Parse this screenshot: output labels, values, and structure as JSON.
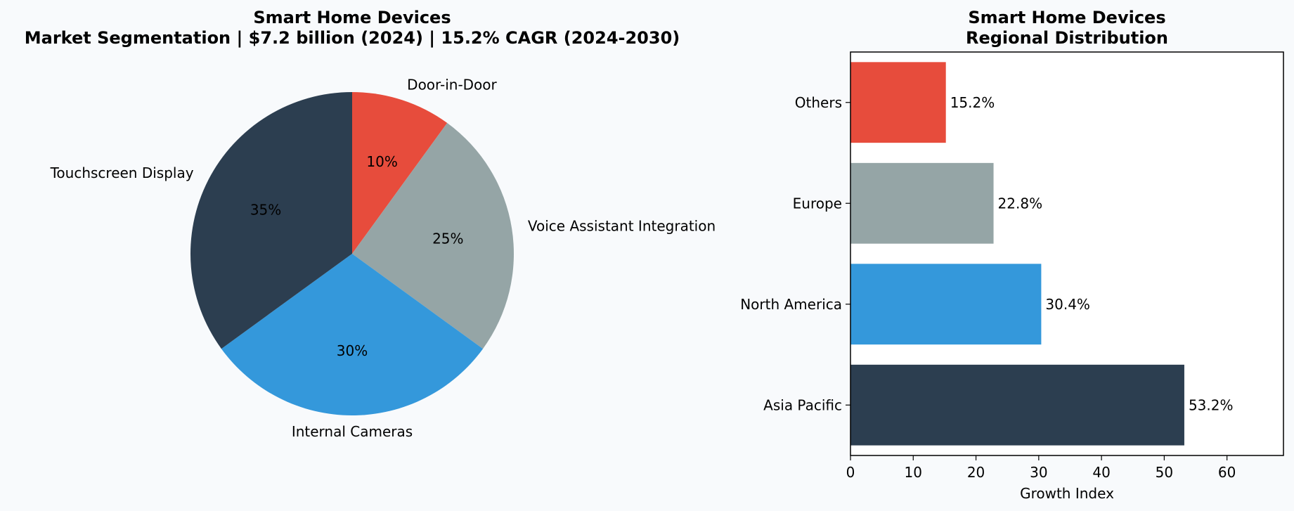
{
  "colors": {
    "background": "#f8fafc",
    "plot_bg": "#ffffff",
    "dark": "#2c3e50",
    "blue": "#3498db",
    "gray": "#95a5a6",
    "red": "#e74c3c"
  },
  "chart_data": [
    {
      "type": "pie",
      "title": "Smart Home Devices",
      "subtitle": "Market Segmentation | $7.2 billion (2024) | 15.2% CAGR (2024-2030)",
      "slices": [
        {
          "label": "Door-in-Door",
          "value": 10,
          "pct_label": "10%",
          "color": "#e74c3c"
        },
        {
          "label": "Voice Assistant Integration",
          "value": 25,
          "pct_label": "25%",
          "color": "#95a5a6"
        },
        {
          "label": "Internal Cameras",
          "value": 30,
          "pct_label": "30%",
          "color": "#3498db"
        },
        {
          "label": "Touchscreen Display",
          "value": 35,
          "pct_label": "35%",
          "color": "#2c3e50"
        }
      ],
      "start_angle_deg": 90,
      "direction": "clockwise"
    },
    {
      "type": "bar",
      "orientation": "horizontal",
      "title": "Smart Home Devices",
      "subtitle": "Regional Distribution",
      "categories": [
        "Asia Pacific",
        "North America",
        "Europe",
        "Others"
      ],
      "values": [
        53.2,
        30.4,
        22.8,
        15.2
      ],
      "value_labels": [
        "53.2%",
        "30.4%",
        "22.8%",
        "15.2%"
      ],
      "colors": [
        "#2c3e50",
        "#3498db",
        "#95a5a6",
        "#e74c3c"
      ],
      "xlabel": "Growth Index",
      "ylabel": "",
      "xlim": [
        0,
        69
      ],
      "xticks": [
        0,
        10,
        20,
        30,
        40,
        50,
        60
      ],
      "grid": false
    }
  ]
}
